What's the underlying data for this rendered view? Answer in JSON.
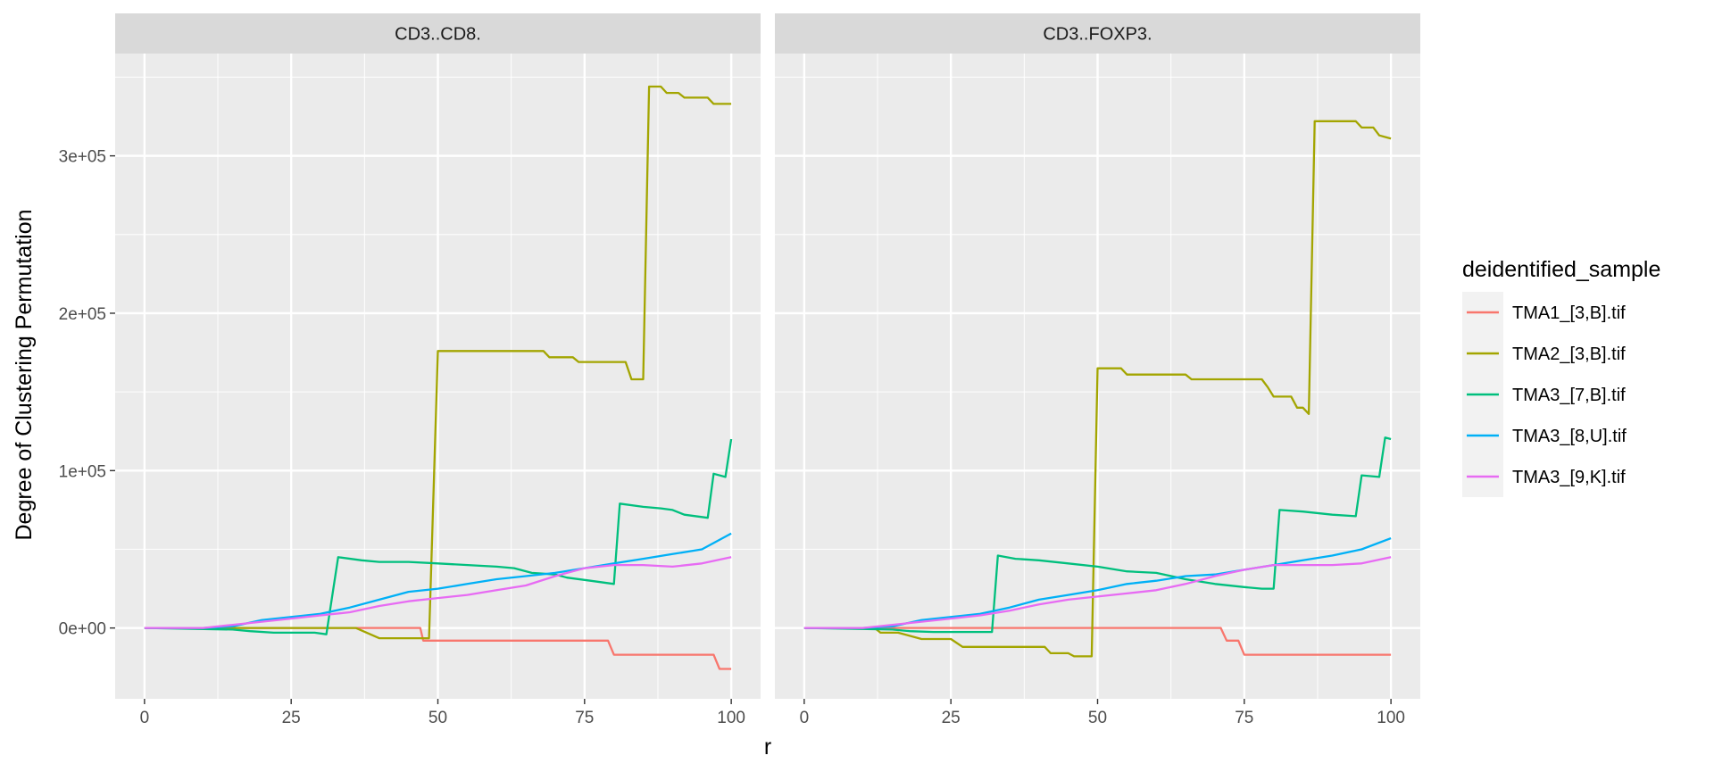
{
  "chart_data": {
    "type": "line",
    "facets": [
      "CD3..CD8.",
      "CD3..FOXP3."
    ],
    "xlabel": "r",
    "ylabel": "Degree of Clustering Permutation",
    "xlim": [
      -5,
      105
    ],
    "ylim": [
      -45000,
      365000
    ],
    "x_ticks": [
      0,
      25,
      50,
      75,
      100
    ],
    "x_tick_labels": [
      "0",
      "25",
      "50",
      "75",
      "100"
    ],
    "y_ticks": [
      0,
      100000,
      200000,
      300000
    ],
    "y_tick_labels": [
      "0e+00",
      "1e+05",
      "2e+05",
      "3e+05"
    ],
    "grid": true,
    "legend": {
      "title": "deidentified_sample",
      "position": "right"
    },
    "series": [
      {
        "name": "TMA1_[3,B].tif",
        "color": "#F8766D",
        "panels": [
          [
            [
              0,
              0
            ],
            [
              20,
              0
            ],
            [
              47,
              0
            ],
            [
              47.5,
              -8000
            ],
            [
              79,
              -8000
            ],
            [
              80,
              -17000
            ],
            [
              97,
              -17000
            ],
            [
              98,
              -26000
            ],
            [
              100,
              -26000
            ]
          ],
          [
            [
              0,
              0
            ],
            [
              71,
              0
            ],
            [
              72,
              -8000
            ],
            [
              74,
              -8000
            ],
            [
              75,
              -17000
            ],
            [
              100,
              -17000
            ]
          ]
        ]
      },
      {
        "name": "TMA2_[3,B].tif",
        "color": "#A3A500",
        "panels": [
          [
            [
              0,
              0
            ],
            [
              36,
              0
            ],
            [
              40,
              -6500
            ],
            [
              46,
              -6500
            ],
            [
              48.5,
              -6500
            ],
            [
              50,
              176000
            ],
            [
              68,
              176000
            ],
            [
              69,
              172000
            ],
            [
              73,
              172000
            ],
            [
              74,
              169000
            ],
            [
              82,
              169000
            ],
            [
              83,
              158000
            ],
            [
              85,
              158000
            ],
            [
              86,
              344000
            ],
            [
              88,
              344000
            ],
            [
              89,
              340000
            ],
            [
              91,
              340000
            ],
            [
              92,
              337000
            ],
            [
              96,
              337000
            ],
            [
              97,
              333000
            ],
            [
              100,
              333000
            ]
          ],
          [
            [
              0,
              0
            ],
            [
              12,
              0
            ],
            [
              13,
              -3000
            ],
            [
              16,
              -3000
            ],
            [
              20,
              -7000
            ],
            [
              25,
              -7000
            ],
            [
              27,
              -12000
            ],
            [
              41,
              -12000
            ],
            [
              42,
              -16000
            ],
            [
              45,
              -16000
            ],
            [
              46,
              -18000
            ],
            [
              49,
              -18000
            ],
            [
              50,
              165000
            ],
            [
              54,
              165000
            ],
            [
              55,
              161000
            ],
            [
              65,
              161000
            ],
            [
              66,
              158000
            ],
            [
              78,
              158000
            ],
            [
              79,
              153000
            ],
            [
              80,
              147000
            ],
            [
              83,
              147000
            ],
            [
              84,
              140000
            ],
            [
              85,
              140000
            ],
            [
              86,
              136000
            ],
            [
              87,
              322000
            ],
            [
              94,
              322000
            ],
            [
              95,
              318000
            ],
            [
              97,
              318000
            ],
            [
              98,
              313000
            ],
            [
              99,
              312000
            ],
            [
              100,
              311000
            ]
          ]
        ]
      },
      {
        "name": "TMA3_[7,B].tif",
        "color": "#00BF7D",
        "panels": [
          [
            [
              0,
              0
            ],
            [
              15,
              -1000
            ],
            [
              18,
              -2000
            ],
            [
              22,
              -3000
            ],
            [
              29,
              -3000
            ],
            [
              31,
              -4000
            ],
            [
              33,
              45000
            ],
            [
              37,
              43000
            ],
            [
              40,
              42000
            ],
            [
              45,
              42000
            ],
            [
              50,
              41000
            ],
            [
              60,
              39000
            ],
            [
              63,
              38000
            ],
            [
              66,
              35000
            ],
            [
              70,
              34000
            ],
            [
              72,
              32000
            ],
            [
              76,
              30000
            ],
            [
              80,
              28000
            ],
            [
              81,
              79000
            ],
            [
              85,
              77000
            ],
            [
              88,
              76000
            ],
            [
              90,
              75000
            ],
            [
              92,
              72000
            ],
            [
              96,
              70000
            ],
            [
              97,
              98000
            ],
            [
              99,
              96000
            ],
            [
              100,
              120000
            ]
          ],
          [
            [
              0,
              0
            ],
            [
              15,
              -1000
            ],
            [
              18,
              -2000
            ],
            [
              22,
              -2500
            ],
            [
              30,
              -2500
            ],
            [
              32,
              -2500
            ],
            [
              33,
              46000
            ],
            [
              36,
              44000
            ],
            [
              40,
              43000
            ],
            [
              45,
              41000
            ],
            [
              50,
              39000
            ],
            [
              55,
              36000
            ],
            [
              60,
              35000
            ],
            [
              65,
              31000
            ],
            [
              70,
              28000
            ],
            [
              75,
              26000
            ],
            [
              78,
              25000
            ],
            [
              80,
              25000
            ],
            [
              81,
              75000
            ],
            [
              85,
              74000
            ],
            [
              90,
              72000
            ],
            [
              94,
              71000
            ],
            [
              95,
              97000
            ],
            [
              98,
              96000
            ],
            [
              99,
              121000
            ],
            [
              100,
              120000
            ]
          ]
        ]
      },
      {
        "name": "TMA3_[8,U].tif",
        "color": "#00B0F6",
        "panels": [
          [
            [
              0,
              0
            ],
            [
              10,
              0
            ],
            [
              15,
              1000
            ],
            [
              20,
              5000
            ],
            [
              25,
              7000
            ],
            [
              30,
              9000
            ],
            [
              35,
              13000
            ],
            [
              40,
              18000
            ],
            [
              45,
              23000
            ],
            [
              50,
              25000
            ],
            [
              55,
              28000
            ],
            [
              60,
              31000
            ],
            [
              65,
              33000
            ],
            [
              70,
              35000
            ],
            [
              75,
              38000
            ],
            [
              80,
              41000
            ],
            [
              85,
              44000
            ],
            [
              90,
              47000
            ],
            [
              95,
              50000
            ],
            [
              100,
              60000
            ]
          ],
          [
            [
              0,
              0
            ],
            [
              10,
              0
            ],
            [
              15,
              1000
            ],
            [
              20,
              5000
            ],
            [
              25,
              7000
            ],
            [
              30,
              9000
            ],
            [
              35,
              13000
            ],
            [
              40,
              18000
            ],
            [
              45,
              21000
            ],
            [
              50,
              24000
            ],
            [
              55,
              28000
            ],
            [
              60,
              30000
            ],
            [
              65,
              33000
            ],
            [
              70,
              34000
            ],
            [
              75,
              37000
            ],
            [
              80,
              40000
            ],
            [
              85,
              43000
            ],
            [
              90,
              46000
            ],
            [
              95,
              50000
            ],
            [
              100,
              57000
            ]
          ]
        ]
      },
      {
        "name": "TMA3_[9,K].tif",
        "color": "#E76BF3",
        "panels": [
          [
            [
              0,
              0
            ],
            [
              10,
              0
            ],
            [
              15,
              2000
            ],
            [
              20,
              4000
            ],
            [
              25,
              6000
            ],
            [
              30,
              8000
            ],
            [
              35,
              10000
            ],
            [
              40,
              14000
            ],
            [
              45,
              17000
            ],
            [
              50,
              19000
            ],
            [
              55,
              21000
            ],
            [
              60,
              24000
            ],
            [
              65,
              27000
            ],
            [
              70,
              33000
            ],
            [
              75,
              38000
            ],
            [
              80,
              40000
            ],
            [
              85,
              40000
            ],
            [
              90,
              39000
            ],
            [
              95,
              41000
            ],
            [
              100,
              45000
            ]
          ],
          [
            [
              0,
              0
            ],
            [
              10,
              0
            ],
            [
              15,
              2000
            ],
            [
              20,
              4000
            ],
            [
              25,
              6000
            ],
            [
              30,
              8000
            ],
            [
              35,
              11000
            ],
            [
              40,
              15000
            ],
            [
              45,
              18000
            ],
            [
              50,
              20000
            ],
            [
              55,
              22000
            ],
            [
              60,
              24000
            ],
            [
              65,
              28000
            ],
            [
              70,
              33000
            ],
            [
              75,
              37000
            ],
            [
              80,
              40000
            ],
            [
              85,
              40000
            ],
            [
              90,
              40000
            ],
            [
              95,
              41000
            ],
            [
              100,
              45000
            ]
          ]
        ]
      }
    ]
  }
}
